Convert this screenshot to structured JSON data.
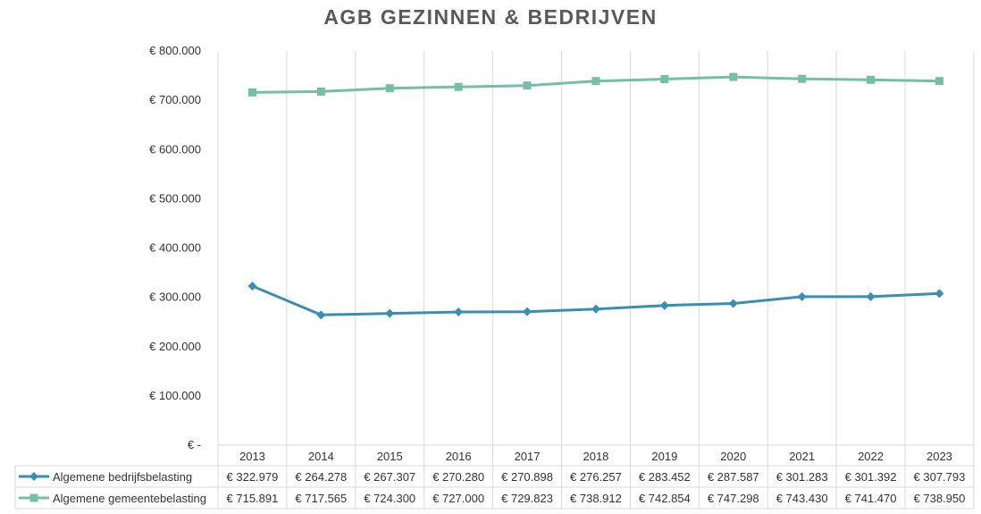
{
  "chart_data": {
    "type": "line",
    "title": "AGB GEZINNEN & BEDRIJVEN",
    "categories": [
      "2013",
      "2014",
      "2015",
      "2016",
      "2017",
      "2018",
      "2019",
      "2020",
      "2021",
      "2022",
      "2023"
    ],
    "ylim": [
      0,
      800000
    ],
    "yticks": [
      0,
      100000,
      200000,
      300000,
      400000,
      500000,
      600000,
      700000,
      800000
    ],
    "ytick_labels": [
      "€ -",
      "€ 100.000",
      "€ 200.000",
      "€ 300.000",
      "€ 400.000",
      "€ 500.000",
      "€ 600.000",
      "€ 700.000",
      "€ 800.000"
    ],
    "grid": "vertical",
    "legend": "data table",
    "series": [
      {
        "name": "Algemene bedrijfsbelasting",
        "color": "#3a8fb0",
        "marker": "diamond",
        "values": [
          322979,
          264278,
          267307,
          270280,
          270898,
          276257,
          283452,
          287587,
          301283,
          301392,
          307793
        ],
        "labels": [
          "€ 322.979",
          "€ 264.278",
          "€ 267.307",
          "€ 270.280",
          "€ 270.898",
          "€ 276.257",
          "€ 283.452",
          "€ 287.587",
          "€ 301.283",
          "€ 301.392",
          "€ 307.793"
        ]
      },
      {
        "name": "Algemene gemeentebelasting",
        "color": "#75bfa3",
        "marker": "square",
        "values": [
          715891,
          717565,
          724300,
          727000,
          729823,
          738912,
          742854,
          747298,
          743430,
          741470,
          738950
        ],
        "labels": [
          "€ 715.891",
          "€ 717.565",
          "€ 724.300",
          "€ 727.000",
          "€ 729.823",
          "€ 738.912",
          "€ 742.854",
          "€ 747.298",
          "€ 743.430",
          "€ 741.470",
          "€ 738.950"
        ]
      }
    ]
  }
}
